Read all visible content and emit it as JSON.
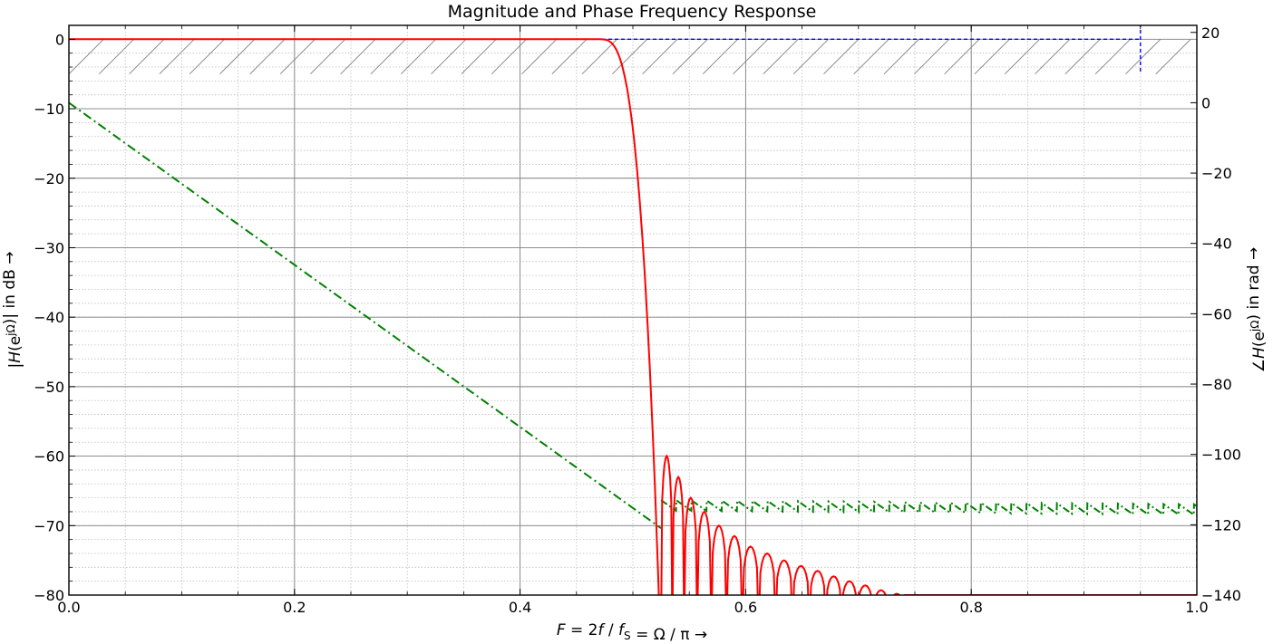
{
  "chart_data": {
    "type": "line",
    "title": "Magnitude and Phase Frequency Response",
    "xlabel": "F = 2f / f_S = Ω / π →",
    "xlabel_parts": [
      "F",
      " = 2",
      "f",
      " / ",
      "f",
      "S",
      " = Ω / π →"
    ],
    "ylabel_left": "|H(e^{jΩ})| in dB →",
    "ylabel_left_parts": [
      "|",
      "H",
      "(e",
      "jΩ",
      ")| in dB  →"
    ],
    "ylabel_right": "∠H(e^{jΩ}) in rad →",
    "ylabel_right_parts": [
      "∠",
      "H",
      "(e",
      "jΩ",
      ") in rad  →"
    ],
    "xlim": [
      0.0,
      1.0
    ],
    "ylim_left": [
      -80,
      2
    ],
    "ylim_right": [
      -140,
      22
    ],
    "xticks": [
      0.0,
      0.2,
      0.4,
      0.6,
      0.8,
      1.0
    ],
    "xtick_labels": [
      "0.0",
      "0.2",
      "0.4",
      "0.6",
      "0.8",
      "1.0"
    ],
    "yticks_left": [
      0,
      -10,
      -20,
      -30,
      -40,
      -50,
      -60,
      -70,
      -80
    ],
    "ytick_left_labels": [
      "0",
      "−10",
      "−20",
      "−30",
      "−40",
      "−50",
      "−60",
      "−70",
      "−80"
    ],
    "yticks_right": [
      20,
      0,
      -20,
      -40,
      -60,
      -80,
      -100,
      -120,
      -140
    ],
    "ytick_right_labels": [
      "20",
      "0",
      "−20",
      "−40",
      "−60",
      "−80",
      "−100",
      "−120",
      "−140"
    ],
    "grid": "major and minor, both axes",
    "legend": "none",
    "series": [
      {
        "axis": "left",
        "style": "solid",
        "color": "#ff0000",
        "passband_edge": 0.47,
        "main_lobe_zero": 0.525,
        "sidelobes": [
          {
            "x": 0.53,
            "y": -60
          },
          {
            "x": 0.54,
            "y": -63
          },
          {
            "x": 0.551,
            "y": -66
          },
          {
            "x": 0.563,
            "y": -68
          },
          {
            "x": 0.576,
            "y": -70
          },
          {
            "x": 0.59,
            "y": -71.5
          },
          {
            "x": 0.604,
            "y": -73
          },
          {
            "x": 0.619,
            "y": -74
          },
          {
            "x": 0.634,
            "y": -75
          },
          {
            "x": 0.649,
            "y": -75.8
          },
          {
            "x": 0.664,
            "y": -76.5
          },
          {
            "x": 0.678,
            "y": -77.3
          },
          {
            "x": 0.692,
            "y": -78
          },
          {
            "x": 0.706,
            "y": -78.6
          },
          {
            "x": 0.72,
            "y": -79.3
          },
          {
            "x": 0.734,
            "y": -79.8
          }
        ]
      },
      {
        "axis": "right",
        "style": "dash-dot",
        "color": "#008000",
        "linear_start": {
          "x": 0.0,
          "y": 0.0
        },
        "linear_end": {
          "x": 0.525,
          "y": -121
        },
        "sawtooth_band": [
          -116,
          -113
        ]
      }
    ],
    "tolerance_scheme": {
      "color": "#0000ff",
      "style": "dashed",
      "passband_y": 0,
      "passband_x": [
        0.0,
        0.95
      ],
      "drop_to": -5,
      "stopband_x": 1.0,
      "stopband_y": [
        -80,
        -60
      ],
      "hatch_band_y": [
        -5,
        0
      ],
      "hatch_x": [
        0.0,
        0.95
      ]
    },
    "colors": {
      "magnitude": "#ff0000",
      "phase": "#008000",
      "tolerance": "#0000ff"
    }
  }
}
